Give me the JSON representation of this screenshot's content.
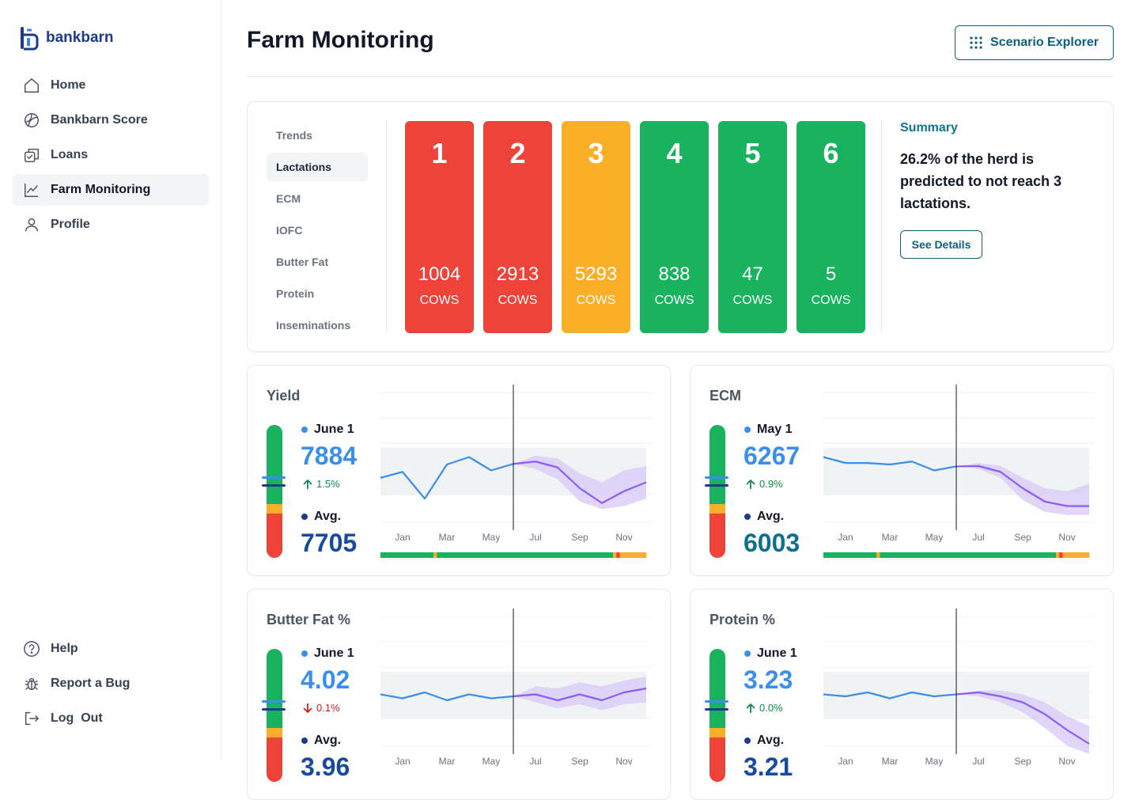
{
  "brand": {
    "name": "bankbarn"
  },
  "nav": {
    "items": [
      {
        "label": "Home",
        "icon": "home-icon"
      },
      {
        "label": "Bankbarn Score",
        "icon": "score-icon"
      },
      {
        "label": "Loans",
        "icon": "loans-icon"
      },
      {
        "label": "Farm Monitoring",
        "icon": "chart-line-icon",
        "active": true
      },
      {
        "label": "Profile",
        "icon": "user-icon"
      }
    ],
    "bottom": [
      {
        "label": "Help",
        "icon": "help-icon"
      },
      {
        "label": "Report a Bug",
        "icon": "bug-icon"
      },
      {
        "label": "Log  Out",
        "icon": "logout-icon"
      }
    ]
  },
  "header": {
    "title": "Farm Monitoring",
    "scenario_button": "Scenario Explorer"
  },
  "lactations": {
    "tabs": [
      "Trends",
      "Lactations",
      "ECM",
      "IOFC",
      "Butter Fat",
      "Protein",
      "Inseminations"
    ],
    "active_tab": "Lactations",
    "bars": [
      {
        "number": "1",
        "count": "1004",
        "unit": "COWS",
        "color": "#ef4339"
      },
      {
        "number": "2",
        "count": "2913",
        "unit": "COWS",
        "color": "#ef4339"
      },
      {
        "number": "3",
        "count": "5293",
        "unit": "COWS",
        "color": "#fbae27"
      },
      {
        "number": "4",
        "count": "838",
        "unit": "COWS",
        "color": "#19b35f"
      },
      {
        "number": "5",
        "count": "47",
        "unit": "COWS",
        "color": "#19b35f"
      },
      {
        "number": "6",
        "count": "5",
        "unit": "COWS",
        "color": "#19b35f"
      }
    ],
    "summary": {
      "title": "Summary",
      "text": "26.2% of the herd is predicted to not reach 3 lactations.",
      "button": "See Details"
    }
  },
  "metrics": [
    {
      "title": "Yield",
      "current_label": "June 1",
      "current_value": "7884",
      "change": "1.5%",
      "change_dir": "up",
      "avg_label": "Avg.",
      "avg_value": "7705",
      "chart_data": {
        "type": "line",
        "x_ticks": [
          "Jan",
          "Mar",
          "May",
          "Jul",
          "Sep",
          "Nov"
        ],
        "actual": [
          7790,
          7830,
          7650,
          7880,
          7930,
          7840,
          7884
        ],
        "forecast": [
          7884,
          7900,
          7860,
          7720,
          7620,
          7700,
          7760
        ],
        "forecast_low": [
          7884,
          7850,
          7780,
          7630,
          7580,
          7600,
          7650
        ],
        "forecast_high": [
          7884,
          7940,
          7920,
          7820,
          7760,
          7840,
          7870
        ],
        "ylim": [
          7400,
          8200
        ],
        "status_strip": [
          "green",
          "green",
          "green",
          "green",
          "green",
          "green",
          "green",
          "green",
          "green",
          "green",
          "green",
          "green",
          "green",
          "green",
          "green",
          "green",
          "orange",
          "green",
          "green",
          "green",
          "green",
          "green",
          "green",
          "green",
          "green",
          "green",
          "green",
          "green",
          "green",
          "green",
          "green",
          "green",
          "green",
          "green",
          "green",
          "green",
          "green",
          "green",
          "green",
          "green",
          "green",
          "green",
          "green",
          "green",
          "green",
          "green",
          "green",
          "green",
          "green",
          "green",
          "green",
          "green",
          "green",
          "green",
          "green",
          "green",
          "green",
          "green",
          "green",
          "green",
          "green",
          "green",
          "green",
          "green",
          "green",
          "green",
          "green",
          "green",
          "green",
          "green",
          "orange",
          "red",
          "orange",
          "orange",
          "orange",
          "orange",
          "orange",
          "orange",
          "orange",
          "orange"
        ]
      }
    },
    {
      "title": "ECM",
      "current_label": "May 1",
      "current_value": "6267",
      "change": "0.9%",
      "change_dir": "up",
      "avg_label": "Avg.",
      "avg_value": "6003",
      "chart_data": {
        "type": "line",
        "x_ticks": [
          "Jan",
          "Mar",
          "May",
          "Jul",
          "Sep",
          "Nov"
        ],
        "actual": [
          6330,
          6290,
          6290,
          6280,
          6300,
          6240,
          6267
        ],
        "forecast": [
          6267,
          6270,
          6230,
          6120,
          6030,
          6000,
          6000
        ],
        "forecast_low": [
          6267,
          6250,
          6190,
          6040,
          5960,
          5940,
          5940
        ],
        "forecast_high": [
          6267,
          6290,
          6270,
          6190,
          6120,
          6100,
          6150
        ],
        "ylim": [
          5800,
          6600
        ],
        "status_strip": [
          "green",
          "green",
          "green",
          "green",
          "green",
          "green",
          "green",
          "green",
          "green",
          "green",
          "green",
          "green",
          "green",
          "green",
          "green",
          "green",
          "orange",
          "green",
          "green",
          "green",
          "green",
          "green",
          "green",
          "green",
          "green",
          "green",
          "green",
          "green",
          "green",
          "green",
          "green",
          "green",
          "green",
          "green",
          "green",
          "green",
          "green",
          "green",
          "green",
          "green",
          "green",
          "green",
          "green",
          "green",
          "green",
          "green",
          "green",
          "green",
          "green",
          "green",
          "green",
          "green",
          "green",
          "green",
          "green",
          "green",
          "green",
          "green",
          "green",
          "green",
          "green",
          "green",
          "green",
          "green",
          "green",
          "green",
          "green",
          "green",
          "green",
          "green",
          "orange",
          "red",
          "orange",
          "orange",
          "orange",
          "orange",
          "orange",
          "orange",
          "orange",
          "orange"
        ]
      }
    },
    {
      "title": "Butter Fat %",
      "current_label": "June 1",
      "current_value": "4.02",
      "change": "0.1%",
      "change_dir": "down",
      "avg_label": "Avg.",
      "avg_value": "3.96",
      "chart_data": {
        "type": "line",
        "x_ticks": [
          "Jan",
          "Mar",
          "May",
          "Jul",
          "Sep",
          "Nov"
        ],
        "actual": [
          4.03,
          4.01,
          4.04,
          4.0,
          4.03,
          4.01,
          4.02
        ],
        "forecast": [
          4.02,
          4.03,
          4.0,
          4.03,
          4.0,
          4.04,
          4.06
        ],
        "forecast_low": [
          4.02,
          3.99,
          3.96,
          3.98,
          3.95,
          3.98,
          3.99
        ],
        "forecast_high": [
          4.02,
          4.07,
          4.06,
          4.09,
          4.07,
          4.1,
          4.12
        ],
        "ylim": [
          3.7,
          4.3
        ]
      }
    },
    {
      "title": "Protein %",
      "current_label": "June 1",
      "current_value": "3.23",
      "change": "0.0%",
      "change_dir": "up",
      "avg_label": "Avg.",
      "avg_value": "3.21",
      "chart_data": {
        "type": "line",
        "x_ticks": [
          "Jan",
          "Mar",
          "May",
          "Jul",
          "Sep",
          "Nov"
        ],
        "actual": [
          3.23,
          3.22,
          3.24,
          3.21,
          3.24,
          3.22,
          3.23
        ],
        "forecast": [
          3.23,
          3.24,
          3.22,
          3.19,
          3.13,
          3.05,
          2.98
        ],
        "forecast_low": [
          3.23,
          3.22,
          3.19,
          3.14,
          3.06,
          2.97,
          2.93
        ],
        "forecast_high": [
          3.23,
          3.25,
          3.25,
          3.23,
          3.19,
          3.12,
          3.07
        ],
        "ylim": [
          2.9,
          3.5
        ]
      }
    }
  ],
  "colors": {
    "accent": "#0e5f7e",
    "actual_line": "#3b8eea",
    "forecast_line": "#8b5cf6",
    "forecast_band": "#d9ccf7",
    "green": "#19b35f",
    "orange": "#fbae27",
    "red": "#ef4339",
    "avg_text": "#174a9c"
  }
}
